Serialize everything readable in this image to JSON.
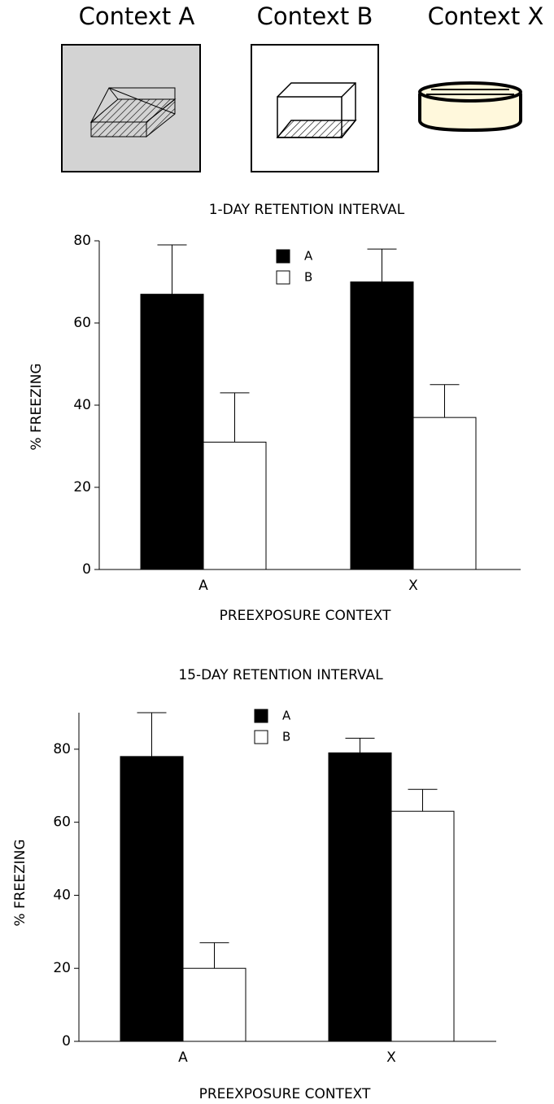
{
  "panels": [
    "Context A",
    "Context B",
    "Context X"
  ],
  "chart_data": [
    {
      "type": "bar",
      "title": "1-DAY RETENTION INTERVAL",
      "x_label": "PREEXPOSURE CONTEXT",
      "y_label": "% FREEZING",
      "categories": [
        "A",
        "X"
      ],
      "series": [
        {
          "name": "A",
          "color": "#000000",
          "values": [
            67,
            70
          ],
          "errors": [
            12,
            8
          ]
        },
        {
          "name": "B",
          "color": "#ffffff",
          "values": [
            31,
            37
          ],
          "errors": [
            12,
            8
          ]
        }
      ],
      "ylim": [
        0,
        80
      ],
      "yticks": [
        0,
        20,
        40,
        60,
        80
      ]
    },
    {
      "type": "bar",
      "title": "15-DAY RETENTION INTERVAL",
      "x_label": "PREEXPOSURE CONTEXT",
      "y_label": "% FREEZING",
      "categories": [
        "A",
        "X"
      ],
      "series": [
        {
          "name": "A",
          "color": "#000000",
          "values": [
            78,
            79
          ],
          "errors": [
            12,
            4
          ]
        },
        {
          "name": "B",
          "color": "#ffffff",
          "values": [
            20,
            63
          ],
          "errors": [
            7,
            6
          ]
        }
      ],
      "ylim": [
        0,
        90
      ],
      "yticks": [
        0,
        20,
        40,
        60,
        80
      ]
    }
  ]
}
